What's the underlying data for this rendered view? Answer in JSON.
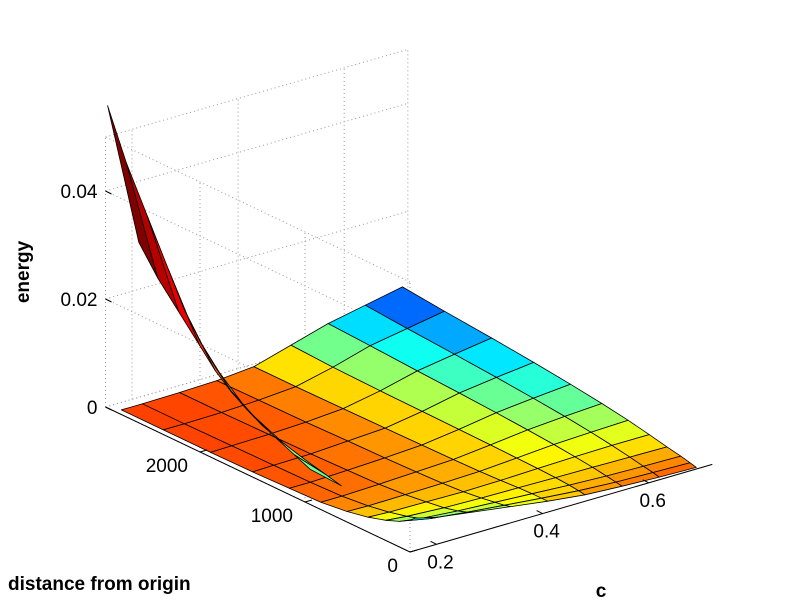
{
  "chart_data": {
    "type": "surface",
    "title": "",
    "xlabel": "c",
    "ylabel": "distance from origin",
    "zlabel": "energy",
    "x_ticks": [
      "0.2",
      "0.4",
      "0.6"
    ],
    "y_ticks": [
      "0",
      "1000",
      "2000"
    ],
    "z_ticks": [
      "0",
      "0.02",
      "0.04"
    ],
    "xlim": [
      0.15,
      0.72
    ],
    "ylim": [
      0,
      2900
    ],
    "zlim": [
      0,
      0.05
    ],
    "grid": true,
    "colormap": "jet",
    "c": [
      0.16,
      0.2,
      0.27,
      0.34,
      0.41,
      0.48,
      0.55,
      0.62,
      0.69
    ],
    "distance": [
      0,
      60,
      150,
      280,
      450,
      650,
      900,
      1200,
      1550,
      1950,
      2400,
      2800
    ],
    "energy": [
      [
        0.006,
        0.005,
        0.004,
        0.003,
        0.002,
        0.0012,
        0.0006,
        0.0004,
        0.0002,
        0.0001,
        0.0001,
        0.0001
      ],
      [
        0.005,
        0.0042,
        0.0034,
        0.0026,
        0.0018,
        0.0011,
        0.0006,
        0.0004,
        0.0003,
        0.0002,
        0.0001,
        0.0001
      ],
      [
        0.004,
        0.0034,
        0.0028,
        0.0022,
        0.0017,
        0.0012,
        0.0008,
        0.0006,
        0.0004,
        0.0003,
        0.0002,
        0.0002
      ],
      [
        0.003,
        0.0027,
        0.0024,
        0.002,
        0.0016,
        0.0013,
        0.0011,
        0.0009,
        0.0008,
        0.0006,
        0.0005,
        0.0004
      ],
      [
        0.002,
        0.002,
        0.002,
        0.0019,
        0.0017,
        0.0015,
        0.0014,
        0.0013,
        0.0012,
        0.0011,
        0.001,
        0.001
      ],
      [
        0.0012,
        0.0014,
        0.0016,
        0.0018,
        0.0019,
        0.002,
        0.0021,
        0.0022,
        0.0023,
        0.0024,
        0.0026,
        0.003
      ],
      [
        0.0008,
        0.001,
        0.0013,
        0.0017,
        0.0021,
        0.0025,
        0.0029,
        0.0033,
        0.0037,
        0.0041,
        0.0046,
        0.005
      ],
      [
        0.0005,
        0.0008,
        0.0011,
        0.0016,
        0.0022,
        0.0028,
        0.0034,
        0.004,
        0.0046,
        0.0052,
        0.0058,
        0.0064
      ],
      [
        0.0003,
        0.0006,
        0.001,
        0.0015,
        0.0022,
        0.003,
        0.0038,
        0.0046,
        0.0054,
        0.0062,
        0.007,
        0.0078
      ]
    ],
    "edge_curve": {
      "c": 0.15,
      "distance": [
        2880,
        2700,
        2500,
        2300,
        2150,
        2000,
        1850,
        1700,
        1500,
        1300,
        1100,
        950
      ],
      "energy": [
        0.056,
        0.047,
        0.039,
        0.031,
        0.025,
        0.0205,
        0.017,
        0.014,
        0.0115,
        0.0095,
        0.0078,
        0.0065
      ]
    }
  }
}
